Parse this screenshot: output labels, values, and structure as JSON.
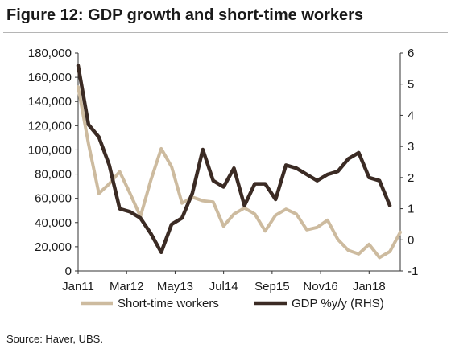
{
  "title": "Figure 12: GDP growth and short-time workers",
  "source": "Source:  Haver, UBS.",
  "colors": {
    "short_time": "#cdbb9f",
    "gdp": "#3b2b24",
    "axis": "#333333"
  },
  "chart_data": {
    "type": "line",
    "title": "Figure 12: GDP growth and short-time workers",
    "xlabel": "",
    "ylabel": "",
    "x_ticks": [
      "Jan11",
      "Mar12",
      "May13",
      "Jul14",
      "Sep15",
      "Nov16",
      "Jan18"
    ],
    "x_range": [
      "2011-01",
      "2018-10"
    ],
    "left_axis": {
      "ylim": [
        0,
        180000
      ],
      "ticks": [
        "0",
        "20,000",
        "40,000",
        "60,000",
        "80,000",
        "100,000",
        "120,000",
        "140,000",
        "160,000",
        "180,000"
      ]
    },
    "right_axis": {
      "ylim": [
        -1,
        6
      ],
      "ticks": [
        "-1",
        "0",
        "1",
        "2",
        "3",
        "4",
        "5",
        "6"
      ]
    },
    "grid": false,
    "legend_position": "bottom",
    "series": [
      {
        "name": "Short-time workers",
        "axis": "left",
        "color": "#cdbb9f",
        "x": [
          "2011-01",
          "2011-04",
          "2011-07",
          "2011-10",
          "2012-01",
          "2012-04",
          "2012-07",
          "2012-10",
          "2013-01",
          "2013-04",
          "2013-07",
          "2013-10",
          "2014-01",
          "2014-04",
          "2014-07",
          "2014-10",
          "2015-01",
          "2015-04",
          "2015-07",
          "2015-10",
          "2016-01",
          "2016-04",
          "2016-07",
          "2016-10",
          "2017-01",
          "2017-04",
          "2017-07",
          "2017-10",
          "2018-01",
          "2018-04",
          "2018-07",
          "2018-10"
        ],
        "values": [
          152000,
          105000,
          64000,
          72000,
          82000,
          64000,
          45000,
          75000,
          101000,
          86000,
          56000,
          61000,
          58000,
          57000,
          37000,
          47000,
          52000,
          47000,
          33000,
          46000,
          51000,
          47000,
          34000,
          36000,
          42000,
          26000,
          17000,
          14000,
          22000,
          11000,
          16000,
          32000
        ]
      },
      {
        "name": "GDP %y/y (RHS)",
        "axis": "right",
        "color": "#3b2b24",
        "x": [
          "2011-01",
          "2011-04",
          "2011-07",
          "2011-10",
          "2012-01",
          "2012-04",
          "2012-07",
          "2012-10",
          "2013-01",
          "2013-04",
          "2013-07",
          "2013-10",
          "2014-01",
          "2014-04",
          "2014-07",
          "2014-10",
          "2015-01",
          "2015-04",
          "2015-07",
          "2015-10",
          "2016-01",
          "2016-04",
          "2016-07",
          "2016-10",
          "2017-01",
          "2017-04",
          "2017-07",
          "2017-10",
          "2018-01",
          "2018-04",
          "2018-07"
        ],
        "values": [
          5.6,
          3.7,
          3.3,
          2.4,
          1.0,
          0.9,
          0.7,
          0.2,
          -0.4,
          0.5,
          0.7,
          1.5,
          2.9,
          1.9,
          1.7,
          2.3,
          1.1,
          1.8,
          1.8,
          1.3,
          2.4,
          2.3,
          2.1,
          1.9,
          2.1,
          2.2,
          2.6,
          2.8,
          2.0,
          1.9,
          1.1
        ]
      }
    ]
  }
}
